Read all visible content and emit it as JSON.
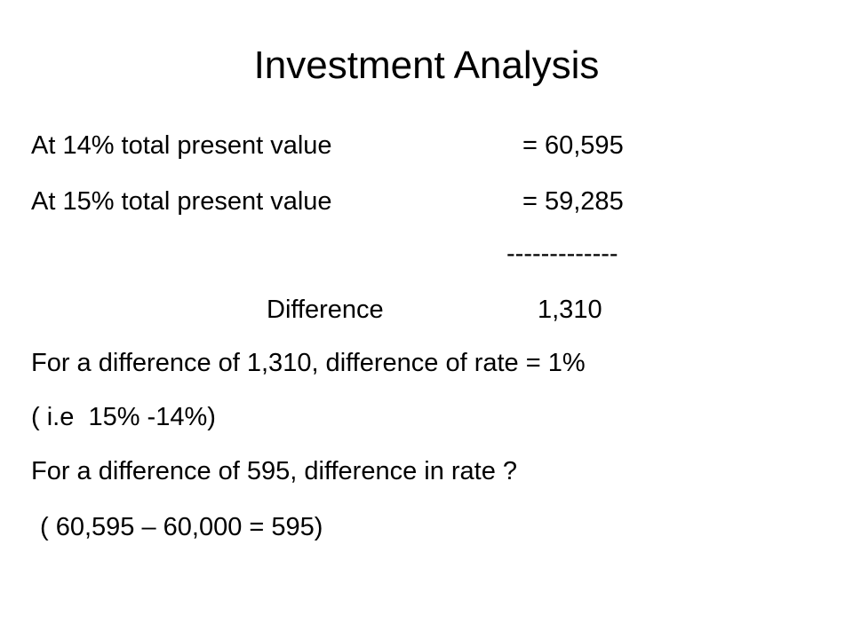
{
  "title": "Investment Analysis",
  "rows": [
    {
      "label": "At 14% total present value",
      "value": "= 60,595"
    },
    {
      "label": "At 15% total present value",
      "value": "= 59,285"
    },
    {
      "value": "-------------"
    },
    {
      "label": "Difference",
      "value": "1,310"
    }
  ],
  "lines": [
    "For a difference of 1,310, difference of rate = 1%",
    "( i.e  15% -14%)",
    "For a difference of 595, difference in rate ?",
    "( 60,595 – 60,000 = 595)"
  ]
}
